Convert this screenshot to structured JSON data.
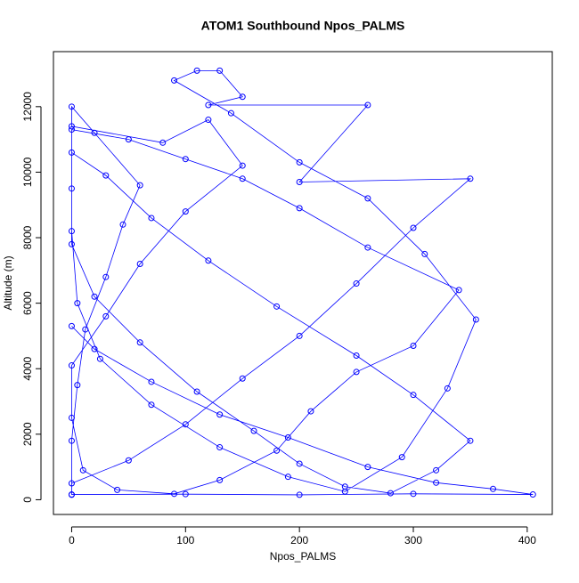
{
  "chart_data": {
    "type": "line",
    "title": "ATOM1 Southbound Npos_PALMS",
    "xlabel": "Npos_PALMS",
    "ylabel": "Altitude (m)",
    "color": "#0000ff",
    "markers": true,
    "xlim": [
      -16,
      422
    ],
    "ylim": [
      -450,
      13680
    ],
    "xticks": [
      0,
      100,
      200,
      300,
      400
    ],
    "yticks": [
      0,
      2000,
      4000,
      6000,
      8000,
      10000,
      12000
    ],
    "series": [
      {
        "name": "Npos_PALMS",
        "x": [
          0,
          0,
          5,
          12,
          30,
          45,
          60,
          20,
          0,
          0,
          80,
          120,
          150,
          100,
          60,
          30,
          0,
          0,
          10,
          40,
          90,
          130,
          180,
          210,
          250,
          300,
          340,
          260,
          200,
          150,
          100,
          50,
          0,
          0,
          0,
          20,
          60,
          110,
          160,
          200,
          240,
          280,
          320,
          350,
          300,
          250,
          180,
          120,
          70,
          30,
          0,
          0,
          5,
          25,
          70,
          130,
          190,
          240,
          290,
          330,
          355,
          310,
          260,
          200,
          140,
          90,
          110,
          130,
          150,
          120,
          260,
          200,
          350,
          300,
          250,
          200,
          150,
          100,
          50,
          0,
          0,
          100,
          200,
          300,
          405,
          370,
          320,
          260,
          190,
          130,
          70,
          20,
          0
        ],
        "values": [
          150,
          1800,
          3500,
          5200,
          6800,
          8400,
          9600,
          11200,
          12000,
          11400,
          10900,
          11600,
          10200,
          8800,
          7200,
          5600,
          4100,
          2500,
          900,
          300,
          180,
          600,
          1500,
          2700,
          3900,
          4700,
          6400,
          7700,
          8900,
          9800,
          10400,
          11000,
          11300,
          9500,
          7800,
          6200,
          4800,
          3300,
          2100,
          1100,
          400,
          200,
          900,
          1800,
          3200,
          4400,
          5900,
          7300,
          8600,
          9900,
          10600,
          8200,
          6000,
          4300,
          2900,
          1600,
          700,
          250,
          1300,
          3400,
          5500,
          7500,
          9200,
          10300,
          11800,
          12800,
          13100,
          13100,
          12300,
          12050,
          12050,
          9700,
          9800,
          8300,
          6600,
          5000,
          3700,
          2300,
          1200,
          500,
          160,
          170,
          150,
          180,
          160,
          330,
          520,
          1000,
          1900,
          2600,
          3600,
          4600,
          5300
        ]
      }
    ]
  }
}
